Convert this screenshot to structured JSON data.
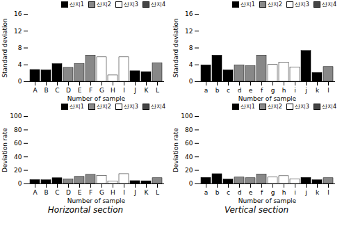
{
  "chart_data": [
    {
      "type": "bar",
      "categories": [
        "A",
        "B",
        "C",
        "D",
        "E",
        "F",
        "G",
        "H",
        "I",
        "J",
        "K",
        "L"
      ],
      "series": [
        {
          "name": "산지1",
          "color": "#000000",
          "values": [
            2.8,
            2.7,
            4.2,
            0,
            0,
            0,
            0,
            0,
            0,
            2.5,
            2.3,
            0
          ]
        },
        {
          "name": "산지2",
          "color": "#888888",
          "values": [
            0,
            0,
            0,
            3.3,
            4.2,
            6.2,
            0,
            0,
            0,
            0,
            0,
            4.4
          ]
        },
        {
          "name": "산지3",
          "color": "#ffffff",
          "values": [
            0,
            0,
            0,
            0,
            0,
            0,
            5.8,
            1.5,
            5.8,
            0,
            0,
            0
          ]
        },
        {
          "name": "산지4",
          "color": "#444444",
          "values": [
            0,
            0,
            0,
            0,
            0,
            0,
            0,
            0,
            0,
            0,
            0,
            0
          ]
        }
      ],
      "ylim": [
        0,
        16
      ],
      "yticks": [
        0,
        4,
        8,
        12,
        16
      ],
      "xlabel": "Number of sample",
      "ylabel": "Standard deviation",
      "legend": "upper right"
    },
    {
      "type": "bar",
      "categories": [
        "a",
        "b",
        "c",
        "d",
        "e",
        "f",
        "g",
        "h",
        "i",
        "j",
        "k",
        "l"
      ],
      "series": [
        {
          "name": "산지1",
          "color": "#000000",
          "values": [
            3.9,
            6.2,
            2.7,
            0,
            0,
            0,
            0,
            0,
            0,
            7.3,
            2.1,
            0
          ]
        },
        {
          "name": "산지2",
          "color": "#888888",
          "values": [
            0,
            0,
            0,
            3.9,
            3.7,
            6.2,
            0,
            0,
            0,
            0,
            0,
            3.5
          ]
        },
        {
          "name": "산지3",
          "color": "#ffffff",
          "values": [
            0,
            0,
            0,
            0,
            0,
            0,
            4.0,
            4.5,
            3.4,
            0,
            0,
            0
          ]
        },
        {
          "name": "산지4",
          "color": "#444444",
          "values": [
            0,
            0,
            0,
            0,
            0,
            0,
            0,
            0,
            0,
            0,
            0,
            0
          ]
        }
      ],
      "ylim": [
        0,
        16
      ],
      "yticks": [
        0,
        4,
        8,
        12,
        16
      ],
      "xlabel": "Number of sample",
      "ylabel": "Standard deviation",
      "legend": "upper right"
    },
    {
      "type": "bar",
      "title": "Horizontal section",
      "categories": [
        "A",
        "B",
        "C",
        "D",
        "E",
        "F",
        "G",
        "H",
        "I",
        "J",
        "K",
        "L"
      ],
      "series": [
        {
          "name": "산지1",
          "color": "#000000",
          "values": [
            5.8,
            5.5,
            8.5,
            0,
            0,
            0,
            0,
            0,
            0,
            4.2,
            4.0,
            0
          ]
        },
        {
          "name": "산지2",
          "color": "#888888",
          "values": [
            0,
            0,
            0,
            6.8,
            10.5,
            13.5,
            0,
            0,
            0,
            0,
            0,
            8.5
          ]
        },
        {
          "name": "산지3",
          "color": "#ffffff",
          "values": [
            0,
            0,
            0,
            0,
            0,
            0,
            12.0,
            3.5,
            14.5,
            0,
            0,
            0
          ]
        },
        {
          "name": "산지4",
          "color": "#444444",
          "values": [
            0,
            0,
            0,
            0,
            0,
            0,
            0,
            0,
            0,
            0,
            0,
            0
          ]
        }
      ],
      "ylim": [
        0,
        100
      ],
      "yticks": [
        0,
        20,
        40,
        60,
        80,
        100
      ],
      "xlabel": "Number of sample",
      "ylabel": "Deviation rate",
      "legend": "upper right"
    },
    {
      "type": "bar",
      "title": "Vertical section",
      "categories": [
        "a",
        "b",
        "c",
        "d",
        "e",
        "f",
        "g",
        "h",
        "i",
        "j",
        "k",
        "l"
      ],
      "series": [
        {
          "name": "산지1",
          "color": "#000000",
          "values": [
            9.0,
            14.5,
            6.5,
            0,
            0,
            0,
            0,
            0,
            0,
            9.0,
            5.5,
            0
          ]
        },
        {
          "name": "산지2",
          "color": "#888888",
          "values": [
            0,
            0,
            0,
            9.5,
            8.5,
            14.0,
            0,
            0,
            0,
            0,
            0,
            8.5
          ]
        },
        {
          "name": "산지3",
          "color": "#ffffff",
          "values": [
            0,
            0,
            0,
            0,
            0,
            0,
            9.5,
            11.5,
            7.0,
            0,
            0,
            0
          ]
        },
        {
          "name": "산지4",
          "color": "#444444",
          "values": [
            0,
            0,
            0,
            0,
            0,
            0,
            0,
            0,
            0,
            0,
            0,
            0
          ]
        }
      ],
      "ylim": [
        0,
        100
      ],
      "yticks": [
        0,
        20,
        40,
        60,
        80,
        100
      ],
      "xlabel": "Number of sample",
      "ylabel": "Deviation rate",
      "legend": "upper right"
    }
  ]
}
